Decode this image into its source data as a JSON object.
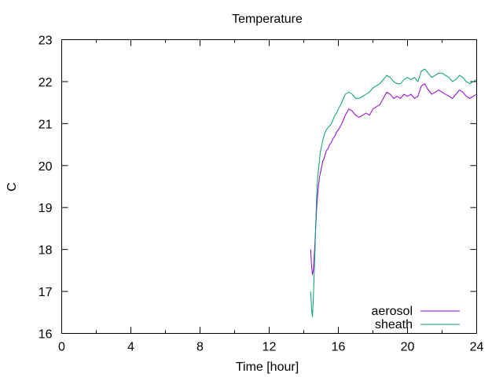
{
  "chart_data": {
    "type": "line",
    "title": "Temperature",
    "xlabel": "Time [hour]",
    "ylabel": "C",
    "xlim": [
      0,
      24
    ],
    "ylim": [
      16,
      23
    ],
    "x_ticks": [
      0,
      4,
      8,
      12,
      16,
      20,
      24
    ],
    "x_minor_ticks": [
      2,
      6,
      10,
      14,
      18,
      22
    ],
    "y_ticks": [
      16,
      17,
      18,
      19,
      20,
      21,
      22,
      23
    ],
    "grid": false,
    "legend_position": "bottom-right",
    "series": [
      {
        "name": "aerosol",
        "color": "#9400d3",
        "x": [
          14.4,
          14.45,
          14.5,
          14.55,
          14.6,
          14.65,
          14.7,
          14.75,
          14.8,
          14.85,
          14.9,
          14.95,
          15.0,
          15.1,
          15.2,
          15.3,
          15.4,
          15.5,
          15.6,
          15.7,
          15.8,
          15.9,
          16.0,
          16.2,
          16.4,
          16.6,
          16.8,
          17.0,
          17.2,
          17.4,
          17.6,
          17.8,
          18.0,
          18.2,
          18.4,
          18.6,
          18.8,
          19.0,
          19.2,
          19.4,
          19.6,
          19.8,
          20.0,
          20.2,
          20.4,
          20.6,
          20.8,
          21.0,
          21.2,
          21.4,
          21.6,
          21.8,
          22.0,
          22.2,
          22.4,
          22.6,
          22.8,
          23.0,
          23.2,
          23.4,
          23.6,
          23.8,
          24.0
        ],
        "y": [
          18.0,
          17.6,
          17.4,
          17.5,
          17.8,
          18.2,
          18.6,
          19.0,
          19.3,
          19.5,
          19.7,
          19.8,
          19.9,
          20.1,
          20.2,
          20.35,
          20.4,
          20.5,
          20.55,
          20.65,
          20.7,
          20.8,
          20.85,
          21.0,
          21.2,
          21.35,
          21.3,
          21.2,
          21.15,
          21.2,
          21.25,
          21.2,
          21.35,
          21.4,
          21.45,
          21.6,
          21.75,
          21.7,
          21.6,
          21.65,
          21.6,
          21.7,
          21.65,
          21.7,
          21.6,
          21.65,
          21.9,
          21.95,
          21.8,
          21.7,
          21.75,
          21.8,
          21.75,
          21.7,
          21.65,
          21.6,
          21.7,
          21.8,
          21.75,
          21.65,
          21.6,
          21.65,
          21.7
        ]
      },
      {
        "name": "sheath",
        "color": "#009e73",
        "x": [
          14.4,
          14.45,
          14.5,
          14.55,
          14.6,
          14.65,
          14.7,
          14.75,
          14.8,
          14.85,
          14.9,
          14.95,
          15.0,
          15.1,
          15.2,
          15.3,
          15.4,
          15.5,
          15.6,
          15.7,
          15.8,
          15.9,
          16.0,
          16.2,
          16.4,
          16.6,
          16.8,
          17.0,
          17.2,
          17.4,
          17.6,
          17.8,
          18.0,
          18.2,
          18.4,
          18.6,
          18.8,
          19.0,
          19.2,
          19.4,
          19.6,
          19.8,
          20.0,
          20.2,
          20.4,
          20.6,
          20.8,
          21.0,
          21.2,
          21.4,
          21.6,
          21.8,
          22.0,
          22.2,
          22.4,
          22.6,
          22.8,
          23.0,
          23.2,
          23.4,
          23.6,
          23.8,
          24.0
        ],
        "y": [
          17.0,
          16.6,
          16.4,
          16.8,
          17.4,
          18.0,
          18.7,
          19.3,
          19.7,
          19.9,
          20.1,
          20.3,
          20.4,
          20.6,
          20.75,
          20.85,
          20.9,
          20.95,
          21.0,
          21.1,
          21.2,
          21.25,
          21.35,
          21.5,
          21.7,
          21.75,
          21.7,
          21.6,
          21.6,
          21.65,
          21.7,
          21.75,
          21.85,
          21.9,
          21.95,
          22.05,
          22.15,
          22.1,
          22.0,
          21.95,
          21.95,
          22.05,
          22.1,
          22.05,
          22.1,
          22.0,
          22.25,
          22.3,
          22.2,
          22.1,
          22.15,
          22.2,
          22.2,
          22.15,
          22.1,
          22.0,
          22.05,
          22.15,
          22.1,
          22.0,
          21.95,
          22.0,
          22.05
        ]
      }
    ]
  }
}
